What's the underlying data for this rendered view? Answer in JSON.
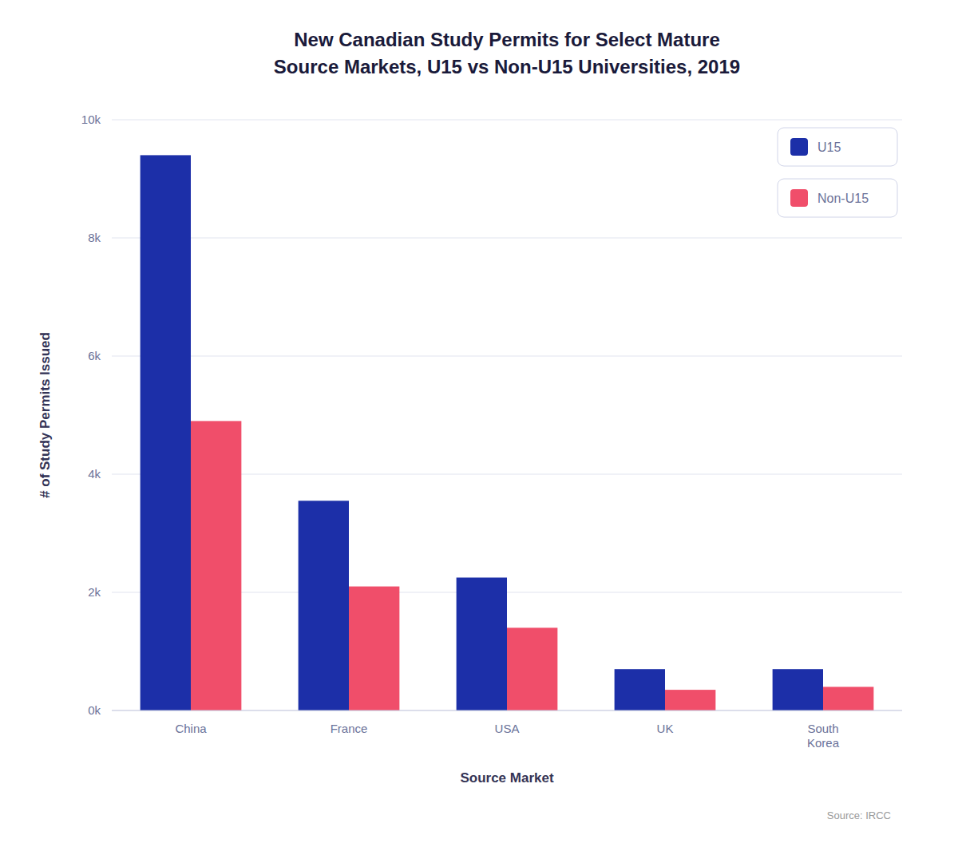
{
  "chart_data": {
    "type": "bar",
    "title": "New Canadian Study Permits for Select Mature\nSource Markets, U15 vs Non-U15 Universities, 2019",
    "x_label": "Source Market",
    "y_label": "# of Study Permits Issued",
    "annotations": [
      "Source: IRCC"
    ],
    "categories": [
      "China",
      "France",
      "USA",
      "UK",
      "South\nKorea"
    ],
    "series": [
      {
        "name": "U15",
        "color": "#1c2fa8",
        "values": [
          9400,
          3550,
          2250,
          700,
          700
        ]
      },
      {
        "name": "Non-U15",
        "color": "#f04e6a",
        "values": [
          4900,
          2100,
          1400,
          350,
          400
        ]
      }
    ],
    "ylim": [
      0,
      10000
    ],
    "yticks": [
      {
        "value": 0,
        "label": "0k"
      },
      {
        "value": 2000,
        "label": "2k"
      },
      {
        "value": 4000,
        "label": "4k"
      },
      {
        "value": 6000,
        "label": "6k"
      },
      {
        "value": 8000,
        "label": "8k"
      },
      {
        "value": 10000,
        "label": "10k"
      }
    ],
    "grid": true,
    "legend": "upper right"
  }
}
